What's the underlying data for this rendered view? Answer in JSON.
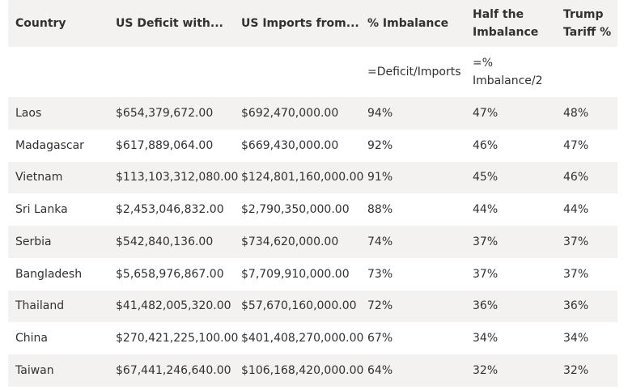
{
  "headers": {
    "country": "Country",
    "deficit": "US Deficit with...",
    "imports": "US Imports from...",
    "imbalance": "% Imbalance",
    "half": "Half the Imbalance",
    "tariff": "Trump Tariff %"
  },
  "formulas": {
    "imbalance": "=Deficit/Imports",
    "half": "=% Imbalance/2"
  },
  "rows": [
    {
      "country": "Laos",
      "deficit": "$654,379,672.00",
      "imports": "$692,470,000.00",
      "imbalance": "94%",
      "half": "47%",
      "tariff": "48%"
    },
    {
      "country": "Madagascar",
      "deficit": "$617,889,064.00",
      "imports": "$669,430,000.00",
      "imbalance": "92%",
      "half": "46%",
      "tariff": "47%"
    },
    {
      "country": "Vietnam",
      "deficit": "$113,103,312,080.00",
      "imports": "$124,801,160,000.00",
      "imbalance": "91%",
      "half": "45%",
      "tariff": "46%"
    },
    {
      "country": "Sri Lanka",
      "deficit": "$2,453,046,832.00",
      "imports": "$2,790,350,000.00",
      "imbalance": "88%",
      "half": "44%",
      "tariff": "44%"
    },
    {
      "country": "Serbia",
      "deficit": "$542,840,136.00",
      "imports": "$734,620,000.00",
      "imbalance": "74%",
      "half": "37%",
      "tariff": "37%"
    },
    {
      "country": "Bangladesh",
      "deficit": "$5,658,976,867.00",
      "imports": "$7,709,910,000.00",
      "imbalance": "73%",
      "half": "37%",
      "tariff": "37%"
    },
    {
      "country": "Thailand",
      "deficit": "$41,482,005,320.00",
      "imports": "$57,670,160,000.00",
      "imbalance": "72%",
      "half": "36%",
      "tariff": "36%"
    },
    {
      "country": "China",
      "deficit": "$270,421,225,100.00",
      "imports": "$401,408,270,000.00",
      "imbalance": "67%",
      "half": "34%",
      "tariff": "34%"
    },
    {
      "country": "Taiwan",
      "deficit": "$67,441,246,640.00",
      "imports": "$106,168,420,000.00",
      "imbalance": "64%",
      "half": "32%",
      "tariff": "32%"
    }
  ]
}
